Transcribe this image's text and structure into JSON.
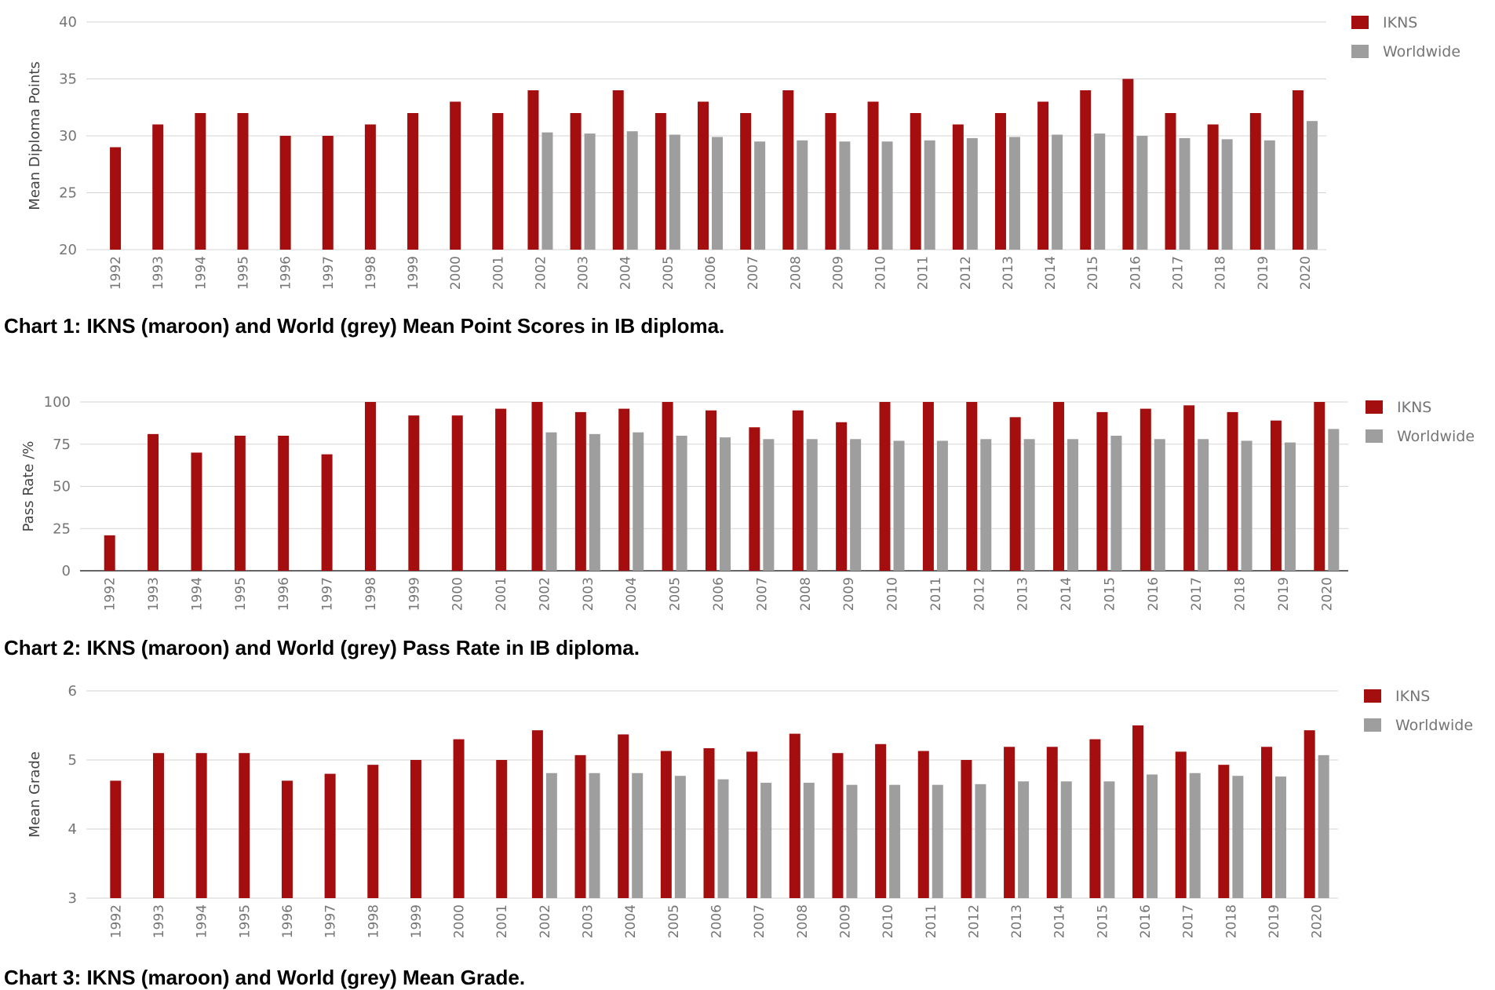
{
  "chart_data": [
    {
      "type": "bar",
      "caption": "Chart 1:  IKNS (maroon) and World (grey) Mean Point Scores in IB diploma.",
      "ylabel": "Mean Diploma Points",
      "ylim": [
        20,
        40
      ],
      "yticks": [
        20,
        25,
        30,
        35,
        40
      ],
      "grid": true,
      "legend": "top-right",
      "categories": [
        "1992",
        "1993",
        "1994",
        "1995",
        "1996",
        "1997",
        "1998",
        "1999",
        "2000",
        "2001",
        "2002",
        "2003",
        "2004",
        "2005",
        "2006",
        "2007",
        "2008",
        "2009",
        "2010",
        "2011",
        "2012",
        "2013",
        "2014",
        "2015",
        "2016",
        "2017",
        "2018",
        "2019",
        "2020"
      ],
      "series": [
        {
          "name": "IKNS",
          "color": "#a50e0e",
          "values": [
            29,
            31,
            32,
            32,
            30,
            30,
            31,
            32,
            33,
            32,
            34,
            32,
            34,
            32,
            33,
            32,
            34,
            32,
            33,
            32,
            31,
            32,
            33,
            34,
            35,
            32,
            31,
            32,
            34
          ]
        },
        {
          "name": "Worldwide",
          "color": "#9e9e9e",
          "values": [
            null,
            null,
            null,
            null,
            null,
            null,
            null,
            null,
            null,
            null,
            30.3,
            30.2,
            30.4,
            30.1,
            29.9,
            29.5,
            29.6,
            29.5,
            29.5,
            29.6,
            29.8,
            29.9,
            30.1,
            30.2,
            30.0,
            29.8,
            29.7,
            29.6,
            31.3
          ]
        }
      ]
    },
    {
      "type": "bar",
      "caption": "Chart 2:  IKNS (maroon) and World (grey) Pass Rate in IB diploma.",
      "ylabel": "Pass Rate /%",
      "ylim": [
        0,
        100
      ],
      "yticks": [
        0,
        25,
        50,
        75,
        100
      ],
      "grid": true,
      "legend": "top-right",
      "categories": [
        "1992",
        "1993",
        "1994",
        "1995",
        "1996",
        "1997",
        "1998",
        "1999",
        "2000",
        "2001",
        "2002",
        "2003",
        "2004",
        "2005",
        "2006",
        "2007",
        "2008",
        "2009",
        "2010",
        "2011",
        "2012",
        "2013",
        "2014",
        "2015",
        "2016",
        "2017",
        "2018",
        "2019",
        "2020"
      ],
      "series": [
        {
          "name": "IKNS",
          "color": "#a50e0e",
          "values": [
            21,
            81,
            70,
            80,
            80,
            69,
            100,
            92,
            92,
            96,
            100,
            94,
            96,
            100,
            95,
            85,
            95,
            88,
            100,
            100,
            100,
            91,
            100,
            94,
            96,
            98,
            94,
            89,
            100
          ]
        },
        {
          "name": "Worldwide",
          "color": "#9e9e9e",
          "values": [
            null,
            null,
            null,
            null,
            null,
            null,
            null,
            null,
            null,
            null,
            82,
            81,
            82,
            80,
            79,
            78,
            78,
            78,
            77,
            77,
            78,
            78,
            78,
            80,
            78,
            78,
            77,
            76,
            84
          ]
        }
      ]
    },
    {
      "type": "bar",
      "caption": "Chart 3:  IKNS (maroon) and World (grey) Mean Grade.",
      "ylabel": "Mean Grade",
      "ylim": [
        3,
        6
      ],
      "yticks": [
        3,
        4,
        5,
        6
      ],
      "grid": true,
      "legend": "top-right",
      "categories": [
        "1992",
        "1993",
        "1994",
        "1995",
        "1996",
        "1997",
        "1998",
        "1999",
        "2000",
        "2001",
        "2002",
        "2003",
        "2004",
        "2005",
        "2006",
        "2007",
        "2008",
        "2009",
        "2010",
        "2011",
        "2012",
        "2013",
        "2014",
        "2015",
        "2016",
        "2017",
        "2018",
        "2019",
        "2020"
      ],
      "series": [
        {
          "name": "IKNS",
          "color": "#a50e0e",
          "values": [
            4.7,
            5.1,
            5.1,
            5.1,
            4.7,
            4.8,
            4.93,
            5.0,
            5.3,
            5.0,
            5.43,
            5.07,
            5.37,
            5.13,
            5.17,
            5.12,
            5.38,
            5.1,
            5.23,
            5.13,
            5.0,
            5.19,
            5.19,
            5.3,
            5.5,
            5.12,
            4.93,
            5.19,
            5.43
          ]
        },
        {
          "name": "Worldwide",
          "color": "#9e9e9e",
          "values": [
            null,
            null,
            null,
            null,
            null,
            null,
            null,
            null,
            null,
            null,
            4.81,
            4.81,
            4.81,
            4.77,
            4.72,
            4.67,
            4.67,
            4.64,
            4.64,
            4.64,
            4.65,
            4.69,
            4.69,
            4.69,
            4.79,
            4.81,
            4.77,
            4.76,
            5.07
          ]
        }
      ]
    }
  ]
}
